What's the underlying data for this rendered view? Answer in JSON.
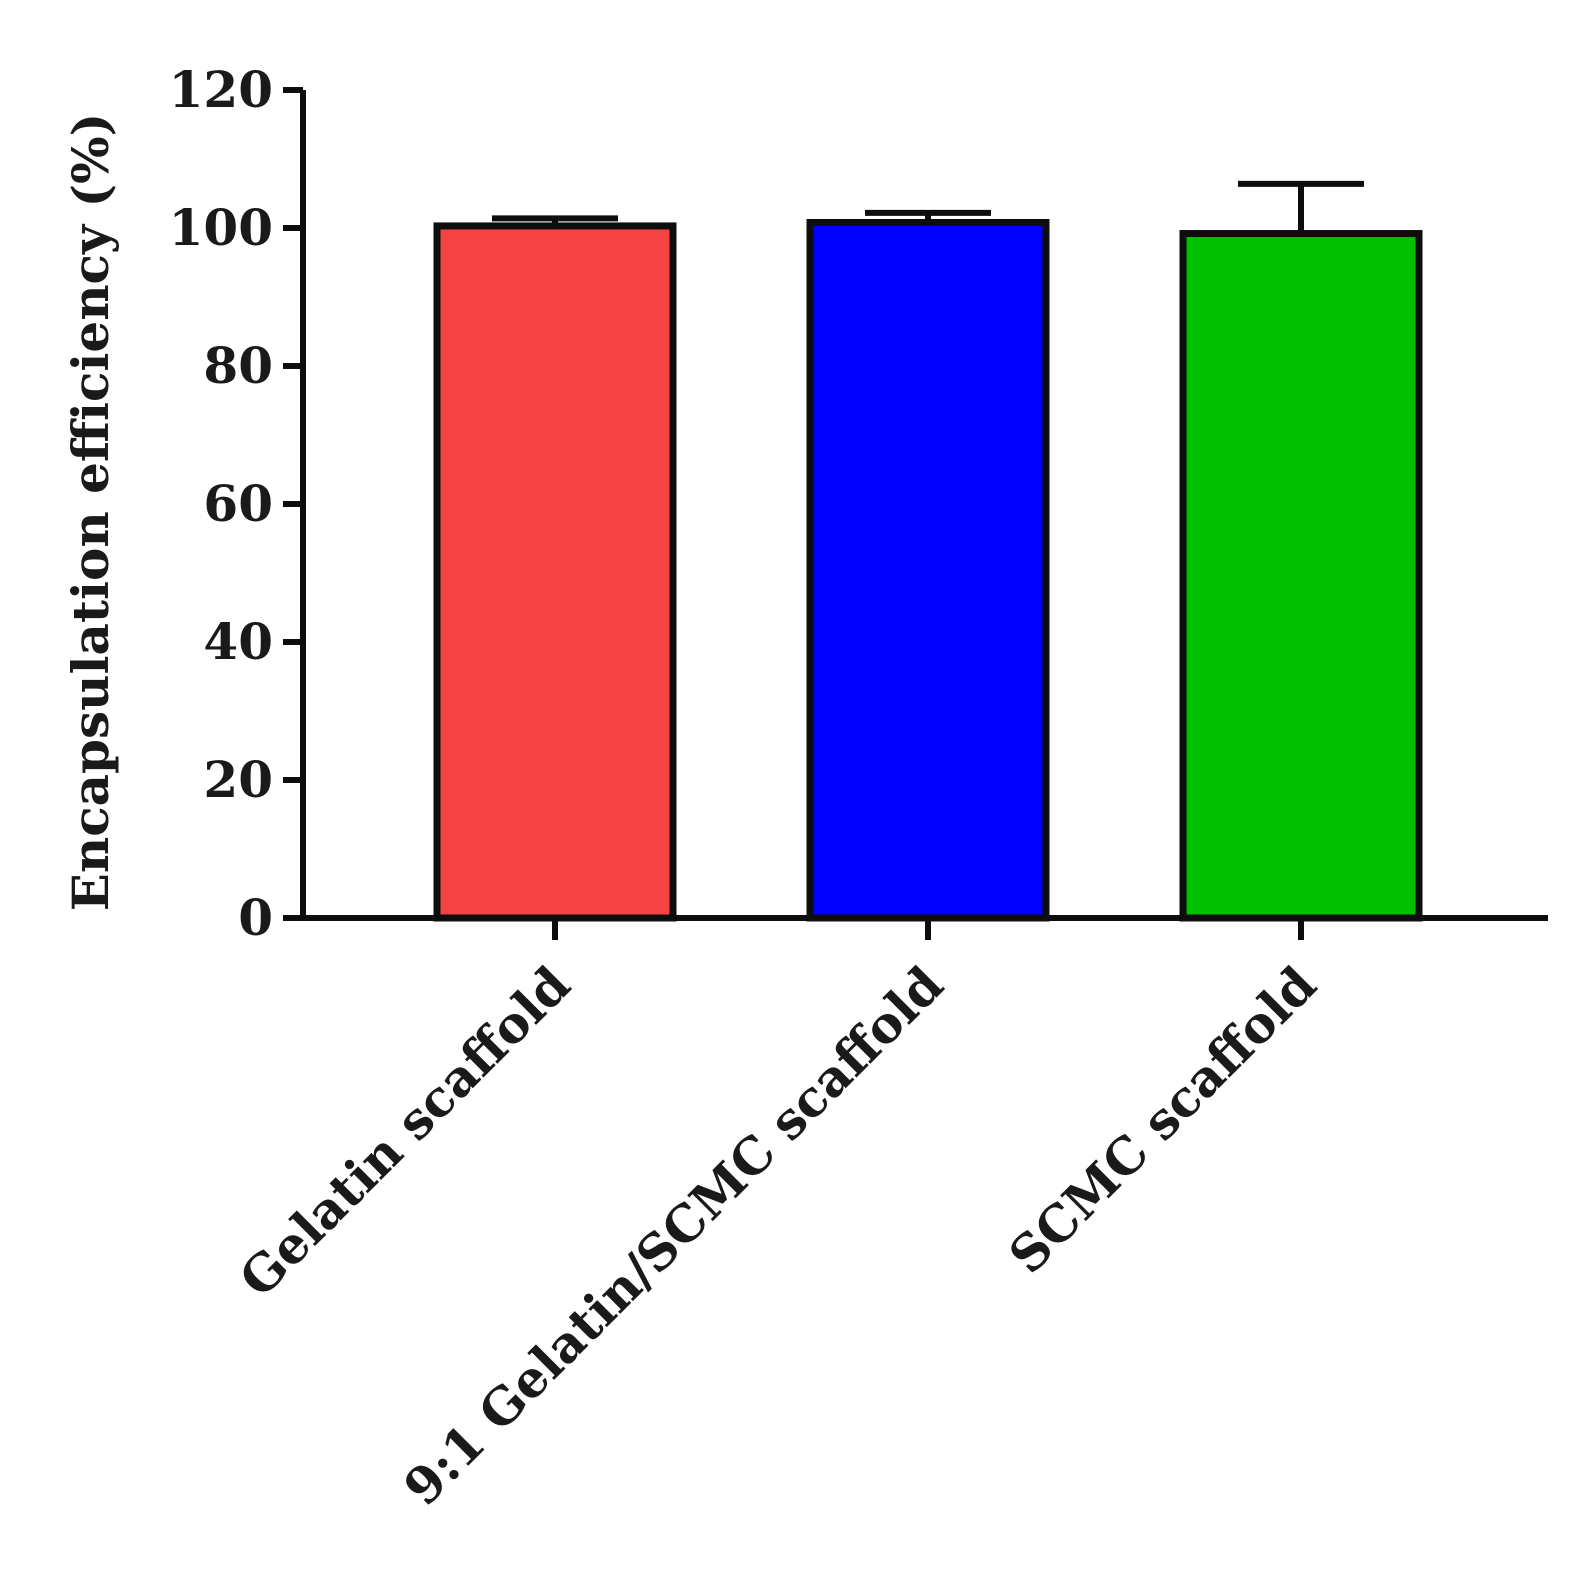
{
  "chart_data": {
    "type": "bar",
    "categories": [
      "Gelatin scaffold",
      "9:1 Gelatin/SCMC scaffold",
      "SCMC scaffold"
    ],
    "values": [
      100.3,
      100.8,
      99.2
    ],
    "error_bars": [
      1.1,
      1.4,
      7.2
    ],
    "colors": [
      "#f54343",
      "#0000ff",
      "#00c000"
    ],
    "title": "",
    "xlabel": "",
    "ylabel": "Encapsulation efficiency (%)",
    "ylim": [
      0,
      120
    ],
    "yticks": [
      "0",
      "20",
      "40",
      "60",
      "80",
      "100",
      "120"
    ],
    "grid": false,
    "legend": "none"
  }
}
